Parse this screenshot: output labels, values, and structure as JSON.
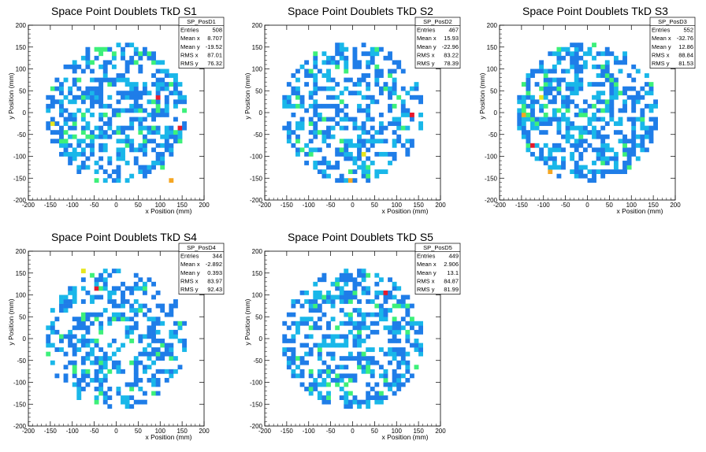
{
  "chart_data": [
    {
      "type": "heatmap",
      "title": "Space Point Doublets TkD S1",
      "xlabel": "x Position (mm)",
      "ylabel": "y Position (mm)",
      "xlim": [
        -200,
        200
      ],
      "ylim": [
        -200,
        200
      ],
      "xticks": [
        "-200",
        "-150",
        "-100",
        "-50",
        "0",
        "50",
        "100",
        "150",
        "200"
      ],
      "yticks": [
        "-200",
        "-150",
        "-100",
        "-50",
        "0",
        "50",
        "100",
        "150",
        "200"
      ],
      "grid": false,
      "legend": "top-right",
      "stats": {
        "name": "SP_PosD1",
        "rows": [
          [
            "Entries",
            "508"
          ],
          [
            "Mean x",
            "8.707"
          ],
          [
            "Mean y",
            "-19.52"
          ],
          [
            "RMS x",
            "87.01"
          ],
          [
            "RMS y",
            "76.32"
          ]
        ]
      },
      "hot_cells": [
        [
          92,
          35,
          "red"
        ],
        [
          148,
          -35,
          "red"
        ],
        [
          128,
          -155,
          "orange"
        ],
        [
          -142,
          -22,
          "yellow"
        ],
        [
          -88,
          78,
          "green"
        ],
        [
          100,
          -125,
          "green"
        ],
        [
          -145,
          55,
          "green"
        ],
        [
          -42,
          -152,
          "green"
        ],
        [
          60,
          -70,
          "green"
        ],
        [
          -120,
          -45,
          "green"
        ]
      ],
      "seed": 11
    },
    {
      "type": "heatmap",
      "title": "Space Point Doublets TkD S2",
      "xlabel": "x Position (mm)",
      "ylabel": "y Position (mm)",
      "xlim": [
        -200,
        200
      ],
      "ylim": [
        -200,
        200
      ],
      "xticks": [
        "-200",
        "-150",
        "-100",
        "-50",
        "0",
        "50",
        "100",
        "150",
        "200"
      ],
      "yticks": [
        "-200",
        "-150",
        "-100",
        "-50",
        "0",
        "50",
        "100",
        "150",
        "200"
      ],
      "grid": false,
      "legend": "top-right",
      "stats": {
        "name": "SP_PosD2",
        "rows": [
          [
            "Entries",
            "467"
          ],
          [
            "Mean x",
            "15.93"
          ],
          [
            "Mean y",
            "-22.96"
          ],
          [
            "RMS x",
            "83.22"
          ],
          [
            "RMS y",
            "78.39"
          ]
        ]
      },
      "hot_cells": [
        [
          132,
          -5,
          "red"
        ],
        [
          -8,
          -155,
          "orange"
        ],
        [
          -130,
          15,
          "green"
        ],
        [
          118,
          -35,
          "green"
        ],
        [
          70,
          50,
          "green"
        ],
        [
          -30,
          -85,
          "green"
        ],
        [
          20,
          -95,
          "yellow"
        ],
        [
          -95,
          -100,
          "green"
        ]
      ],
      "seed": 23
    },
    {
      "type": "heatmap",
      "title": "Space Point Doublets TkD S3",
      "xlabel": "x Position (mm)",
      "ylabel": "y Position (mm)",
      "xlim": [
        -200,
        200
      ],
      "ylim": [
        -200,
        200
      ],
      "xticks": [
        "-200",
        "-150",
        "-100",
        "-50",
        "0",
        "50",
        "100",
        "150",
        "200"
      ],
      "yticks": [
        "-200",
        "-150",
        "-100",
        "-50",
        "0",
        "50",
        "100",
        "150",
        "200"
      ],
      "grid": false,
      "legend": "top-right",
      "stats": {
        "name": "SP_PosD3",
        "rows": [
          [
            "Entries",
            "552"
          ],
          [
            "Mean x",
            "-32.76"
          ],
          [
            "Mean y",
            "12.86"
          ],
          [
            "RMS x",
            "88.84"
          ],
          [
            "RMS y",
            "81.53"
          ]
        ]
      },
      "hot_cells": [
        [
          -128,
          -78,
          "red"
        ],
        [
          -82,
          -138,
          "orange"
        ],
        [
          -148,
          -5,
          "orange"
        ],
        [
          -110,
          30,
          "yellow"
        ],
        [
          -140,
          40,
          "green"
        ],
        [
          -120,
          -30,
          "green"
        ],
        [
          55,
          70,
          "green"
        ],
        [
          -100,
          85,
          "green"
        ],
        [
          30,
          -120,
          "green"
        ],
        [
          -150,
          60,
          "green"
        ]
      ],
      "seed": 37
    },
    {
      "type": "heatmap",
      "title": "Space Point Doublets TkD S4",
      "xlabel": "x Position (mm)",
      "ylabel": "y Position (mm)",
      "xlim": [
        -200,
        200
      ],
      "ylim": [
        -200,
        200
      ],
      "xticks": [
        "-200",
        "-150",
        "-100",
        "-50",
        "0",
        "50",
        "100",
        "150",
        "200"
      ],
      "yticks": [
        "-200",
        "-150",
        "-100",
        "-50",
        "0",
        "50",
        "100",
        "150",
        "200"
      ],
      "grid": false,
      "legend": "top-right",
      "stats": {
        "name": "SP_PosD4",
        "rows": [
          [
            "Entries",
            "344"
          ],
          [
            "Mean x",
            "-2.892"
          ],
          [
            "Mean y",
            "0.393"
          ],
          [
            "RMS x",
            "83.97"
          ],
          [
            "RMS y",
            "92.43"
          ]
        ]
      },
      "hot_cells": [
        [
          -48,
          118,
          "red"
        ],
        [
          -80,
          155,
          "yellow"
        ],
        [
          148,
          35,
          "green"
        ],
        [
          -55,
          145,
          "green"
        ],
        [
          125,
          -45,
          "green"
        ],
        [
          -45,
          -150,
          "green"
        ]
      ],
      "seed": 41
    },
    {
      "type": "heatmap",
      "title": "Space Point Doublets TkD S5",
      "xlabel": "x Position (mm)",
      "ylabel": "y Position (mm)",
      "xlim": [
        -200,
        200
      ],
      "ylim": [
        -200,
        200
      ],
      "xticks": [
        "-200",
        "-150",
        "-100",
        "-50",
        "0",
        "50",
        "100",
        "150",
        "200"
      ],
      "yticks": [
        "-200",
        "-150",
        "-100",
        "-50",
        "0",
        "50",
        "100",
        "150",
        "200"
      ],
      "grid": false,
      "legend": "top-right",
      "stats": {
        "name": "SP_PosD5",
        "rows": [
          [
            "Entries",
            "449"
          ],
          [
            "Mean x",
            "2.906"
          ],
          [
            "Mean y",
            "13.1"
          ],
          [
            "RMS x",
            "84.87"
          ],
          [
            "RMS y",
            "81.99"
          ]
        ]
      },
      "hot_cells": [
        [
          75,
          100,
          "red"
        ],
        [
          -10,
          -125,
          "green"
        ],
        [
          130,
          48,
          "green"
        ],
        [
          -100,
          25,
          "green"
        ],
        [
          20,
          -40,
          "green"
        ],
        [
          -60,
          -140,
          "green"
        ]
      ],
      "seed": 53
    }
  ],
  "colors": {
    "blue": "#1f7de8",
    "cyan": "#19b7e9",
    "green": "#3df07a",
    "yellow": "#e6e61e",
    "orange": "#f5a623",
    "red": "#e8192c",
    "frame": "#000000",
    "background": "#ffffff"
  }
}
